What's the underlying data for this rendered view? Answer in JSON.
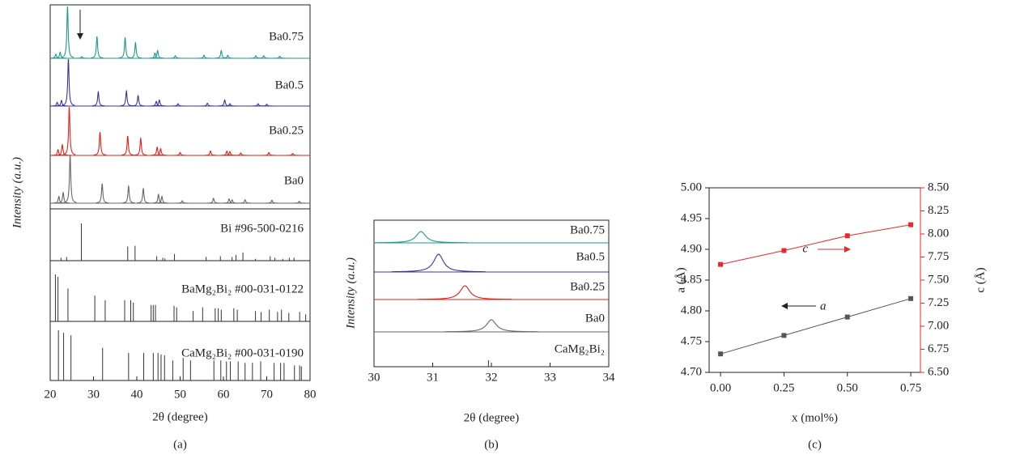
{
  "chart_data": [
    {
      "type": "pattern",
      "panel_label": "(a)",
      "x_label": "2θ (degree)",
      "y_label": "Intensity (a.u.)",
      "xlim": [
        20,
        80
      ],
      "xticks": [
        20,
        30,
        40,
        50,
        60,
        70,
        80
      ],
      "series": [
        {
          "name": "Ba0.75",
          "color": "#1a9a8a",
          "kind": "profile",
          "x": [
            21.3,
            22.3,
            24.0,
            27.3,
            30.8,
            37.3,
            39.7,
            44.2,
            44.8,
            48.9,
            55.5,
            59.5,
            61.0,
            67.5,
            69.3,
            73.0
          ],
          "values": [
            8,
            12,
            100,
            3,
            42,
            40,
            30,
            10,
            15,
            5,
            6,
            15,
            6,
            5,
            5,
            4
          ]
        },
        {
          "name": "Ba0.5",
          "color": "#35359a",
          "kind": "profile",
          "x": [
            21.6,
            22.6,
            24.2,
            31.1,
            37.6,
            40.3,
            44.5,
            45.2,
            49.5,
            56.3,
            60.3,
            61.5,
            68.0,
            70.0
          ],
          "values": [
            8,
            12,
            100,
            30,
            32,
            22,
            10,
            13,
            5,
            6,
            13,
            5,
            5,
            4
          ]
        },
        {
          "name": "Ba0.25",
          "color": "#e0201b",
          "kind": "profile",
          "x": [
            21.8,
            22.8,
            24.4,
            31.5,
            37.9,
            40.9,
            44.7,
            45.5,
            50.0,
            57.0,
            60.8,
            61.5,
            64.0,
            70.5,
            76.0
          ],
          "values": [
            12,
            22,
            100,
            48,
            40,
            35,
            17,
            14,
            6,
            9,
            9,
            8,
            5,
            6,
            4
          ]
        },
        {
          "name": "Ba0",
          "color": "#666666",
          "kind": "profile",
          "x": [
            22.0,
            23.0,
            24.6,
            32.0,
            38.1,
            41.5,
            45.0,
            45.8,
            50.5,
            57.7,
            61.3,
            62.0,
            65.0,
            71.2,
            77.5
          ],
          "values": [
            14,
            22,
            100,
            40,
            35,
            30,
            18,
            14,
            5,
            10,
            9,
            7,
            7,
            6,
            4
          ]
        },
        {
          "name": "Bi #96-500-0216",
          "color": "#333333",
          "kind": "stick",
          "x": [
            22.5,
            23.8,
            27.2,
            37.9,
            39.6,
            44.6,
            46.0,
            46.5,
            48.7,
            56.0,
            59.3,
            62.0,
            62.9,
            64.5,
            67.4,
            70.8,
            71.9,
            73.7,
            75.2,
            76.3
          ],
          "values": [
            8,
            10,
            100,
            38,
            40,
            12,
            8,
            6,
            18,
            10,
            12,
            10,
            15,
            22,
            5,
            12,
            8,
            5,
            8,
            8
          ]
        },
        {
          "name": "BaMg₂Bi₂ #00-031-0122",
          "color": "#333333",
          "kind": "stick",
          "x": [
            21.2,
            21.8,
            24.1,
            30.3,
            32.7,
            37.2,
            38.6,
            39.2,
            43.3,
            43.8,
            44.3,
            48.6,
            49.2,
            53.0,
            55.2,
            58.1,
            58.8,
            59.5,
            62.4,
            63.2,
            67.4,
            68.7,
            70.6,
            72.5,
            73.4,
            75.1,
            77.6,
            79.0
          ],
          "values": [
            100,
            95,
            70,
            55,
            45,
            45,
            45,
            40,
            35,
            35,
            35,
            33,
            30,
            22,
            30,
            28,
            28,
            25,
            28,
            25,
            22,
            20,
            25,
            20,
            25,
            18,
            20,
            15
          ]
        },
        {
          "name": "CaMg₂Bi₂ #00-031-0190",
          "color": "#333333",
          "kind": "stick",
          "x": [
            21.9,
            23.1,
            24.8,
            32.1,
            38.1,
            41.6,
            43.8,
            44.9,
            45.6,
            46.4,
            48.3,
            50.7,
            52.4,
            57.8,
            59.4,
            60.7,
            61.6,
            63.4,
            65.0,
            66.7,
            68.6,
            71.7,
            73.2,
            74.0,
            76.4,
            77.6,
            78.0
          ],
          "values": [
            100,
            95,
            90,
            65,
            55,
            55,
            55,
            55,
            52,
            50,
            40,
            45,
            40,
            40,
            40,
            38,
            38,
            38,
            35,
            35,
            38,
            35,
            35,
            35,
            30,
            30,
            28
          ]
        }
      ]
    },
    {
      "type": "pattern",
      "panel_label": "(b)",
      "x_label": "2θ (degree)",
      "y_label": "Intensity (a.u.)",
      "xlim": [
        30,
        34
      ],
      "xticks": [
        30,
        31,
        32,
        33,
        34
      ],
      "series": [
        {
          "name": "Ba0.75",
          "color": "#1a9a8a",
          "kind": "profile",
          "x": [
            30.8
          ],
          "values": [
            14
          ]
        },
        {
          "name": "Ba0.5",
          "color": "#35359a",
          "kind": "profile",
          "x": [
            31.1
          ],
          "values": [
            22
          ]
        },
        {
          "name": "Ba0.25",
          "color": "#e0201b",
          "kind": "profile",
          "x": [
            31.55
          ],
          "values": [
            17
          ]
        },
        {
          "name": "Ba0",
          "color": "#666666",
          "kind": "profile",
          "x": [
            32.0
          ],
          "values": [
            15
          ]
        },
        {
          "name": "CaMg₂Bi₂",
          "color": "#333333",
          "kind": "stick",
          "x": [
            31.95
          ],
          "values": [
            8
          ]
        }
      ]
    },
    {
      "type": "line",
      "panel_label": "(c)",
      "x_label": "x (mol%)",
      "y_label": "a (Å)",
      "y2_label": "c (Å)",
      "x": [
        0,
        0.25,
        0.5,
        0.75
      ],
      "xlim": [
        -0.045,
        0.788
      ],
      "xticks": [
        {
          "value": 0,
          "label": "0.00"
        },
        {
          "value": 0.25,
          "label": "0.25"
        },
        {
          "value": 0.5,
          "label": "0.50"
        },
        {
          "value": 0.75,
          "label": "0.75"
        }
      ],
      "ylim": [
        4.7,
        5.0
      ],
      "yticks": [
        {
          "value": 4.7,
          "label": "4.70"
        },
        {
          "value": 4.75,
          "label": "4.75"
        },
        {
          "value": 4.8,
          "label": "4.80"
        },
        {
          "value": 4.85,
          "label": "4.85"
        },
        {
          "value": 4.9,
          "label": "4.90"
        },
        {
          "value": 4.95,
          "label": "4.95"
        },
        {
          "value": 5.0,
          "label": "5.00"
        }
      ],
      "y2lim": [
        6.5,
        8.5
      ],
      "y2ticks": [
        {
          "value": 6.5,
          "label": "6.50"
        },
        {
          "value": 6.75,
          "label": "6.75"
        },
        {
          "value": 7.0,
          "label": "7.00"
        },
        {
          "value": 7.25,
          "label": "7.25"
        },
        {
          "value": 7.5,
          "label": "7.50"
        },
        {
          "value": 7.75,
          "label": "7.75"
        },
        {
          "value": 8.0,
          "label": "8.00"
        },
        {
          "value": 8.25,
          "label": "8.25"
        },
        {
          "value": 8.5,
          "label": "8.50"
        }
      ],
      "series": [
        {
          "name": "a",
          "color": "#555555",
          "values": [
            4.73,
            4.76,
            4.79,
            4.82
          ]
        },
        {
          "name": "c",
          "color": "#e8292a",
          "axis": "y2",
          "values": [
            7.67,
            7.82,
            7.98,
            8.1
          ]
        }
      ]
    }
  ]
}
